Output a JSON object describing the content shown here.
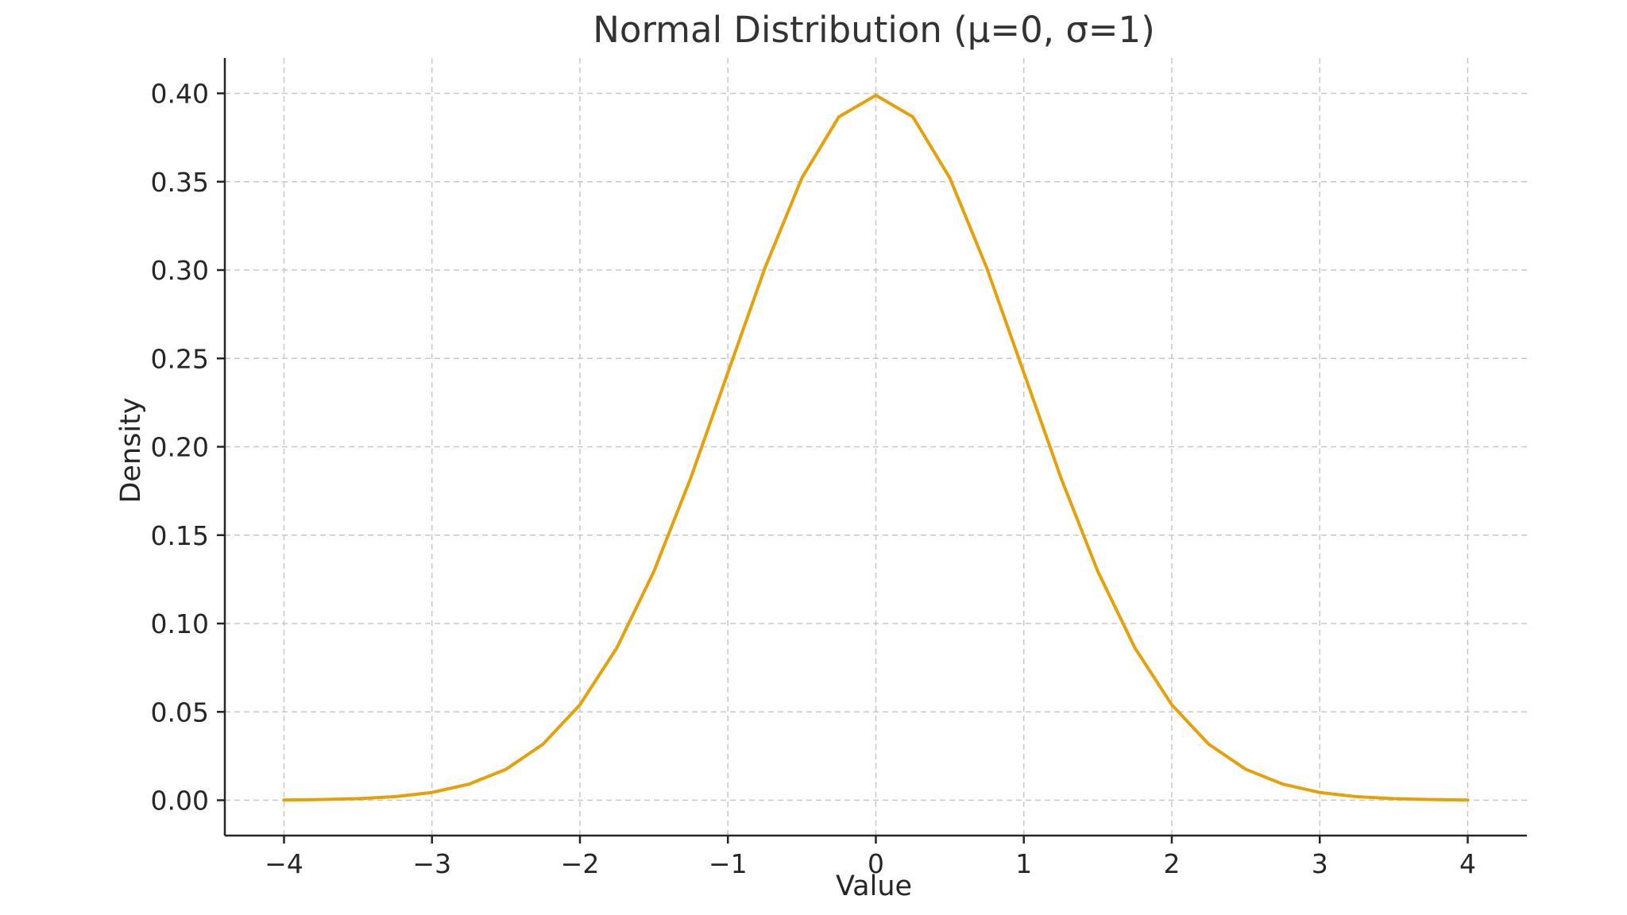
{
  "chart_data": {
    "type": "line",
    "title": "Normal Distribution (μ=0, σ=1)",
    "xlabel": "Value",
    "ylabel": "Density",
    "xlim": [
      -4.4,
      4.4
    ],
    "ylim": [
      -0.02,
      0.42
    ],
    "grid": true,
    "x_ticks": [
      -4,
      -3,
      -2,
      -1,
      0,
      1,
      2,
      3,
      4
    ],
    "x_tick_labels": [
      "−4",
      "−3",
      "−2",
      "−1",
      "0",
      "1",
      "2",
      "3",
      "4"
    ],
    "y_ticks": [
      0.0,
      0.05,
      0.1,
      0.15,
      0.2,
      0.25,
      0.3,
      0.35,
      0.4
    ],
    "y_tick_labels": [
      "0.00",
      "0.05",
      "0.10",
      "0.15",
      "0.20",
      "0.25",
      "0.30",
      "0.35",
      "0.40"
    ],
    "series": [
      {
        "color": "#E6A10A",
        "x": [
          -4.0,
          -3.75,
          -3.5,
          -3.25,
          -3.0,
          -2.75,
          -2.5,
          -2.25,
          -2.0,
          -1.75,
          -1.5,
          -1.25,
          -1.0,
          -0.75,
          -0.5,
          -0.25,
          0.0,
          0.25,
          0.5,
          0.75,
          1.0,
          1.25,
          1.5,
          1.75,
          2.0,
          2.25,
          2.5,
          2.75,
          3.0,
          3.25,
          3.5,
          3.75,
          4.0
        ],
        "y": [
          0.0001,
          0.0004,
          0.0009,
          0.002,
          0.0044,
          0.0091,
          0.0175,
          0.0317,
          0.054,
          0.0863,
          0.1295,
          0.1826,
          0.242,
          0.3011,
          0.3521,
          0.3867,
          0.3989,
          0.3867,
          0.3521,
          0.3011,
          0.242,
          0.1826,
          0.1295,
          0.0863,
          0.054,
          0.0317,
          0.0175,
          0.0091,
          0.0044,
          0.002,
          0.0009,
          0.0004,
          0.0001
        ]
      }
    ]
  }
}
